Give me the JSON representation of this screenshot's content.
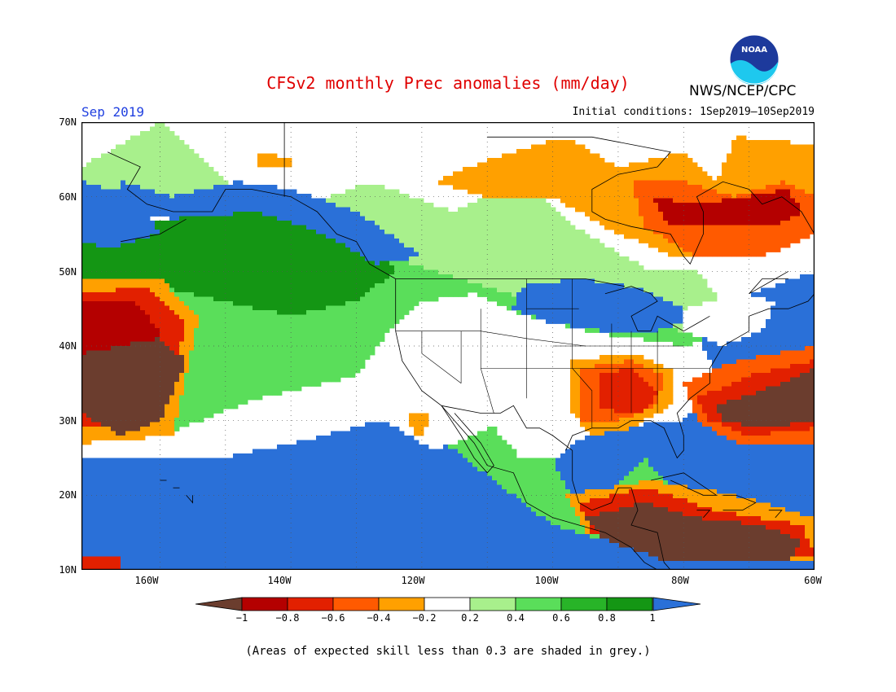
{
  "title": "CFSv2 monthly Prec anomalies (mm/day)",
  "period": "Sep 2019",
  "initial_conditions": "Initial conditions: 1Sep2019–10Sep2019",
  "organization": "NWS/NCEP/CPC",
  "logo_text": "NOAA",
  "footnote": "(Areas of expected skill less than 0.3 are shaded in grey.)",
  "map": {
    "lon_range": [
      -172,
      -60
    ],
    "lat_range": [
      10,
      70
    ],
    "lat_labels": [
      "70N",
      "60N",
      "50N",
      "40N",
      "30N",
      "20N",
      "10N"
    ],
    "lon_labels": [
      "160W",
      "140W",
      "120W",
      "100W",
      "80W",
      "60W"
    ]
  },
  "colorbar": {
    "labels": [
      "−1",
      "−0.8",
      "−0.6",
      "−0.4",
      "−0.2",
      "0.2",
      "0.4",
      "0.6",
      "0.8",
      "1"
    ],
    "colors": [
      "#6b3d2e",
      "#b40000",
      "#e22000",
      "#ff5a00",
      "#ffa000",
      "#ffffff",
      "#a8f08c",
      "#5ade5a",
      "#28b428",
      "#149614",
      "#2a70d8"
    ]
  },
  "anomaly_colors": {
    "brown": "#6b3d2e",
    "darkred": "#b40000",
    "red": "#e22000",
    "orange": "#ff5a00",
    "lightorange": "#ffa000",
    "white": "#ffffff",
    "lightgreen": "#a8f08c",
    "green": "#5ade5a",
    "darkgreen": "#28b428",
    "deepgreen": "#149614",
    "blue": "#2a70d8"
  }
}
